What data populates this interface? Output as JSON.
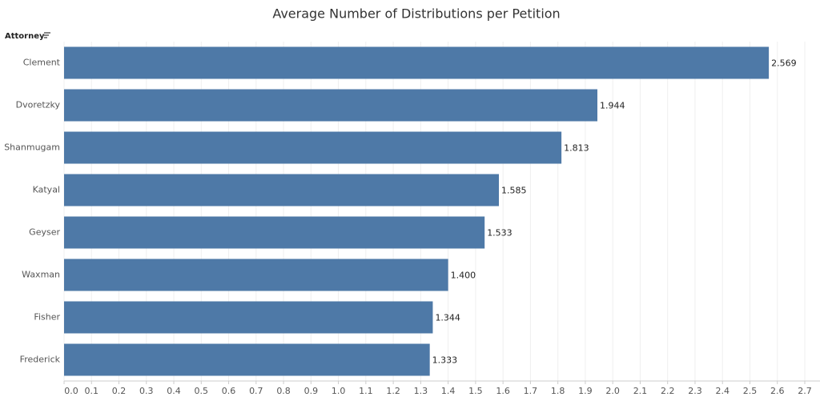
{
  "chart_data": {
    "type": "hbar",
    "title": "Average Number of Distributions per Petition",
    "y_axis_label": "Attorney",
    "categories": [
      "Clement",
      "Dvoretzky",
      "Shanmugam",
      "Katyal",
      "Geyser",
      "Waxman",
      "Fisher",
      "Frederick"
    ],
    "values": [
      2.569,
      1.944,
      1.813,
      1.585,
      1.533,
      1.4,
      1.344,
      1.333
    ],
    "value_labels": [
      "2.569",
      "1.944",
      "1.813",
      "1.585",
      "1.533",
      "1.400",
      "1.344",
      "1.333"
    ],
    "color": "#4e79a7",
    "xlim": [
      0,
      2.7
    ],
    "xticks": [
      {
        "value": 0,
        "label": "0.0"
      },
      0.1,
      0.2,
      0.3,
      0.4,
      0.5,
      0.6,
      0.7,
      0.8,
      0.9,
      {
        "value": 1,
        "label": "1.0"
      },
      1.1,
      1.2,
      1.3,
      1.4,
      1.5,
      1.6,
      1.7,
      1.8,
      1.9,
      {
        "value": 2,
        "label": "2.0"
      },
      2.1,
      2.2,
      2.3,
      2.4,
      2.5,
      2.6,
      2.7
    ],
    "grid": true
  }
}
